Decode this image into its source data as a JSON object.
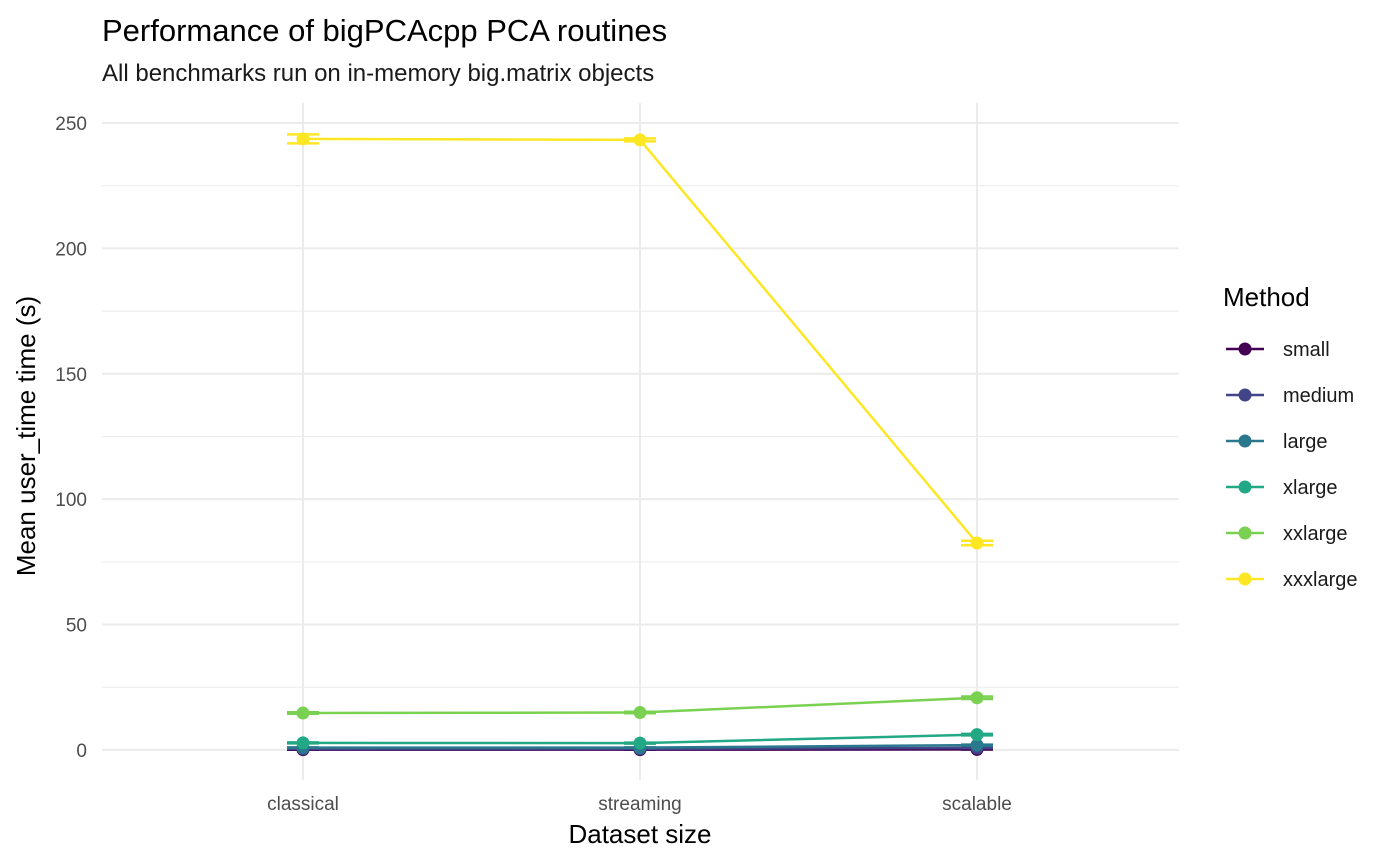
{
  "chart_data": {
    "type": "line",
    "title": "Performance of bigPCAcpp PCA routines",
    "subtitle": "All benchmarks run on in-memory big.matrix objects",
    "xlabel": "Dataset size",
    "ylabel": "Mean user_time time (s)",
    "categories": [
      "classical",
      "streaming",
      "scalable"
    ],
    "ylim": [
      -12,
      258
    ],
    "y_ticks": [
      0,
      50,
      100,
      150,
      200,
      250
    ],
    "y_minor_ticks": [
      25,
      75,
      125,
      175,
      225
    ],
    "grid": true,
    "error_bars": true,
    "legend": {
      "title": "Method",
      "position": "right"
    },
    "series": [
      {
        "name": "small",
        "color": "#440154",
        "values": [
          0.1,
          0.1,
          0.2
        ],
        "errors": [
          0.02,
          0.02,
          0.03
        ]
      },
      {
        "name": "medium",
        "color": "#414487",
        "values": [
          0.4,
          0.4,
          0.8
        ],
        "errors": [
          0.05,
          0.05,
          0.1
        ]
      },
      {
        "name": "large",
        "color": "#2A788E",
        "values": [
          0.9,
          0.9,
          1.9
        ],
        "errors": [
          0.1,
          0.1,
          0.2
        ]
      },
      {
        "name": "xlarge",
        "color": "#22A884",
        "values": [
          2.8,
          2.7,
          6.1
        ],
        "errors": [
          0.2,
          0.2,
          0.3
        ]
      },
      {
        "name": "xxlarge",
        "color": "#7AD151",
        "values": [
          14.7,
          14.9,
          20.8
        ],
        "errors": [
          0.3,
          0.3,
          0.5
        ]
      },
      {
        "name": "xxxlarge",
        "color": "#FDE725",
        "values": [
          243.7,
          243.3,
          82.5
        ],
        "errors": [
          1.8,
          0.6,
          0.9
        ]
      }
    ]
  }
}
